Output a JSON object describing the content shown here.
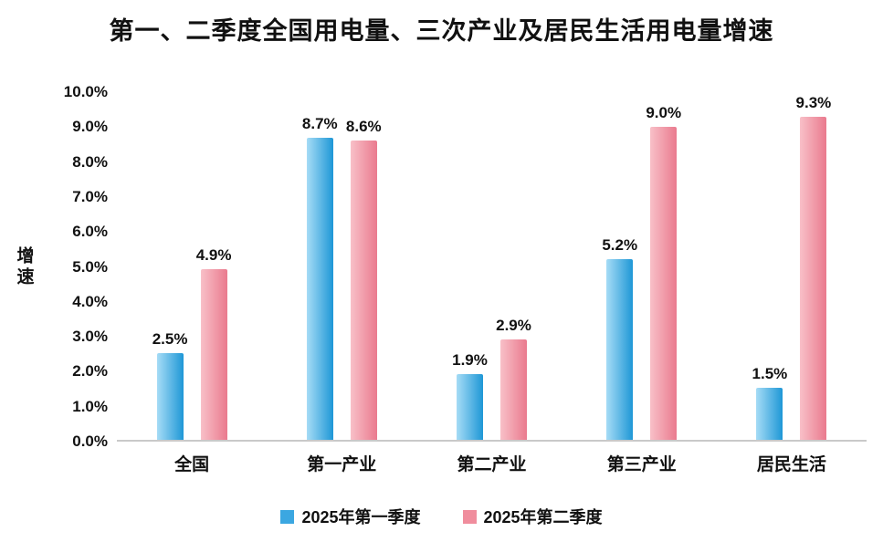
{
  "chart_data": {
    "type": "bar",
    "title": "第一、二季度全国用电量、三次产业及居民生活用电量增速",
    "ylabel": "增速",
    "categories": [
      "全国",
      "第一产业",
      "第二产业",
      "第三产业",
      "居民生活"
    ],
    "series": [
      {
        "name": "2025年第一季度",
        "color": "#3BA7E1",
        "color_light": "#A6DCF6",
        "color_dark": "#1E97D6",
        "values": [
          2.5,
          8.7,
          1.9,
          5.2,
          1.5
        ],
        "labels": [
          "2.5%",
          "8.7%",
          "1.9%",
          "5.2%",
          "1.5%"
        ]
      },
      {
        "name": "2025年第二季度",
        "color": "#F08D9D",
        "color_light": "#F8C0C8",
        "color_dark": "#EA7A8E",
        "values": [
          4.9,
          8.6,
          2.9,
          9.0,
          9.3
        ],
        "labels": [
          "4.9%",
          "8.6%",
          "2.9%",
          "9.0%",
          "9.3%"
        ]
      }
    ],
    "ylim": [
      0,
      10
    ],
    "ytick_step": 1,
    "ytick_labels": [
      "0.0%",
      "1.0%",
      "2.0%",
      "3.0%",
      "4.0%",
      "5.0%",
      "6.0%",
      "7.0%",
      "8.0%",
      "9.0%",
      "10.0%"
    ],
    "value_suffix": "%",
    "grid": false,
    "legend_position": "bottom"
  }
}
